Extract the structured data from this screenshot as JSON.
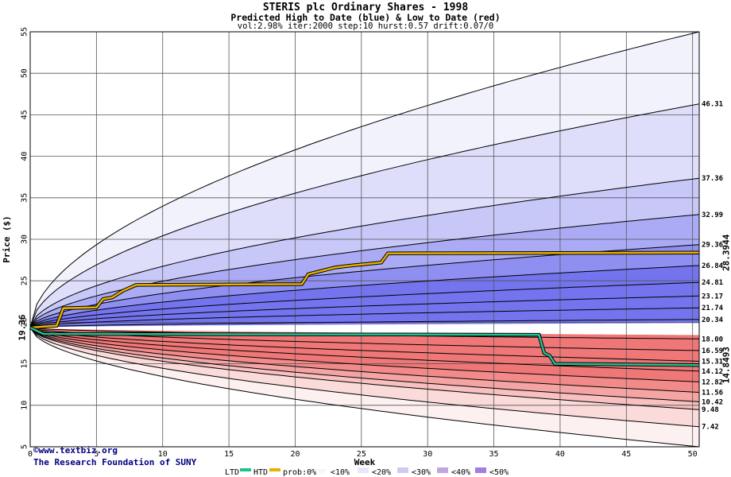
{
  "header": {
    "title": "STERIS plc Ordinary Shares - 1998",
    "subtitle": "Predicted High to Date (blue) &  Low to Date (red)",
    "params": "vol:2.98% iter:2000 step:10 hurst:0.57 drift:0.07/0"
  },
  "source": {
    "line1": "©www.textbiz.org",
    "line2": "The Research Foundation of SUNY"
  },
  "legend": {
    "ltd": "LTD",
    "htd": "HTD",
    "prob": "prob:0%",
    "b10": "<10%",
    "b20": "<20%",
    "b30": "<30%",
    "b40": "<40%",
    "b50": "<50%"
  },
  "colors": {
    "high_bands": [
      "#f2f2fd",
      "#dedefb",
      "#c7c7f8",
      "#ababf5",
      "#8f8ff2",
      "#7474ee"
    ],
    "low_bands": [
      "#fdf0f0",
      "#fbdada",
      "#f8c0c0",
      "#f5a4a4",
      "#f28a8a",
      "#ef7777"
    ],
    "htd_line": "#e8b000",
    "ltd_line": "#20c090",
    "start_label": "#006633",
    "htd_label": "#a08000",
    "ltd_label": "#009966",
    "grid": "#555555"
  },
  "chart_data": {
    "type": "area",
    "title": "STERIS plc Ordinary Shares - 1998",
    "xlabel": "Week",
    "ylabel": "Price ($)",
    "xlim": [
      0,
      50.5
    ],
    "ylim": [
      5,
      55
    ],
    "xticks": [
      0,
      5,
      10,
      15,
      20,
      25,
      30,
      35,
      40,
      45,
      50
    ],
    "yticks": [
      5,
      10,
      15,
      20,
      25,
      30,
      35,
      40,
      45,
      50,
      55
    ],
    "start_price": 19.36,
    "start_label": "19.36",
    "high_percentile_curves": [
      {
        "end": 55,
        "label": ""
      },
      {
        "end": 46.31,
        "label": "46.31"
      },
      {
        "end": 37.36,
        "label": "37.36"
      },
      {
        "end": 32.99,
        "label": "32.99"
      },
      {
        "end": 29.36,
        "label": "29.36"
      },
      {
        "end": 26.84,
        "label": "26.84"
      },
      {
        "end": 24.81,
        "label": "24.81"
      },
      {
        "end": 23.17,
        "label": "23.17"
      },
      {
        "end": 21.74,
        "label": "21.74"
      },
      {
        "end": 20.34,
        "label": "20.34"
      }
    ],
    "low_percentile_curves": [
      {
        "end": 18.0,
        "label": "18.00"
      },
      {
        "end": 16.59,
        "label": "16.59"
      },
      {
        "end": 15.31,
        "label": "15.31"
      },
      {
        "end": 14.12,
        "label": "14.12"
      },
      {
        "end": 12.82,
        "label": "12.82"
      },
      {
        "end": 11.56,
        "label": "11.56"
      },
      {
        "end": 10.42,
        "label": "10.42"
      },
      {
        "end": 9.48,
        "label": "9.48"
      },
      {
        "end": 7.42,
        "label": "7.42"
      },
      {
        "end": 5,
        "label": ""
      }
    ],
    "htd_series": {
      "name": "HTD",
      "end_label": "28.3944",
      "points": [
        [
          0,
          19.36
        ],
        [
          2,
          19.6
        ],
        [
          2.5,
          21.7
        ],
        [
          5,
          21.8
        ],
        [
          5.5,
          22.8
        ],
        [
          6.2,
          23.0
        ],
        [
          7,
          23.8
        ],
        [
          8,
          24.5
        ],
        [
          20.5,
          24.6
        ],
        [
          21,
          25.8
        ],
        [
          22,
          26.2
        ],
        [
          23,
          26.6
        ],
        [
          24,
          26.8
        ],
        [
          26.5,
          27.2
        ],
        [
          27,
          28.3
        ],
        [
          50.5,
          28.3944
        ]
      ]
    },
    "ltd_series": {
      "name": "LTD",
      "end_label": "14.8493",
      "points": [
        [
          0,
          19.36
        ],
        [
          1,
          18.6
        ],
        [
          38.4,
          18.5
        ],
        [
          38.8,
          16.3
        ],
        [
          39.2,
          16.0
        ],
        [
          39.6,
          15.0
        ],
        [
          50.5,
          14.8493
        ]
      ]
    }
  }
}
